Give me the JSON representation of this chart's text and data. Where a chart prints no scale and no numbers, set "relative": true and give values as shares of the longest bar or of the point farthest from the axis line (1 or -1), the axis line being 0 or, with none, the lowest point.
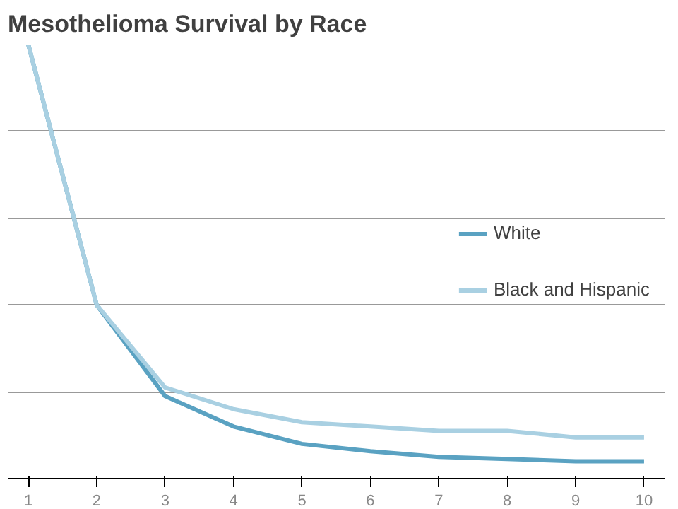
{
  "chart_data": {
    "type": "line",
    "title": "Mesothelioma Survival by Race",
    "relative": true,
    "categories": [
      "1",
      "2",
      "3",
      "4",
      "5",
      "6",
      "7",
      "8",
      "9",
      "10"
    ],
    "series": [
      {
        "name": "White",
        "color": "#5aa2c2",
        "values": [
          1.0,
          0.4,
          0.19,
          0.12,
          0.08,
          0.063,
          0.05,
          0.045,
          0.04,
          0.04
        ]
      },
      {
        "name": "Black and Hispanic",
        "color": "#a9d0e2",
        "values": [
          1.0,
          0.4,
          0.21,
          0.16,
          0.13,
          0.12,
          0.11,
          0.11,
          0.095,
          0.095
        ]
      }
    ],
    "grid": "y",
    "legend": "right",
    "marker": "none",
    "line_style": "solid"
  }
}
